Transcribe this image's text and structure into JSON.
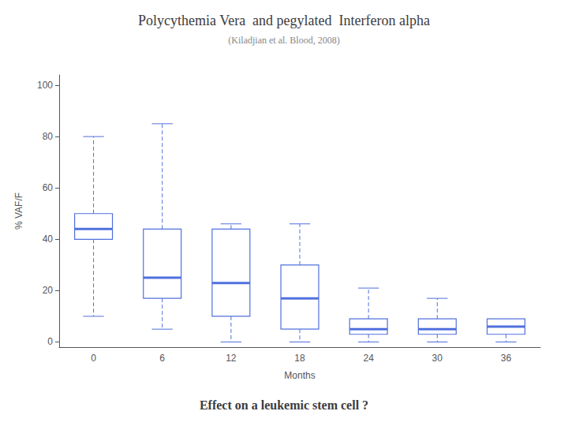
{
  "chart_data": {
    "type": "box",
    "title": "Polycythemia Vera  and pegylated  Interferon alpha",
    "subtitle": "(Kiladjian et al. Blood, 2008)",
    "xlabel": "Months",
    "ylabel": "% VAF/F",
    "annotation": "Effect on a leukemic stem cell ?",
    "categories": [
      "0",
      "6",
      "12",
      "18",
      "24",
      "30",
      "36"
    ],
    "values": [
      {
        "whisker_low": 10,
        "q1": 40,
        "median": 44,
        "q3": 50,
        "whisker_high": 80
      },
      {
        "whisker_low": 5,
        "q1": 17,
        "median": 25,
        "q3": 44,
        "whisker_high": 85
      },
      {
        "whisker_low": 0,
        "q1": 10,
        "median": 23,
        "q3": 44,
        "whisker_high": 46
      },
      {
        "whisker_low": 0,
        "q1": 5,
        "median": 17,
        "q3": 30,
        "whisker_high": 46
      },
      {
        "whisker_low": 0,
        "q1": 3,
        "median": 5,
        "q3": 9,
        "whisker_high": 21
      },
      {
        "whisker_low": 0,
        "q1": 3,
        "median": 5,
        "q3": 9,
        "whisker_high": 17
      },
      {
        "whisker_low": 0,
        "q1": 3,
        "median": 6,
        "q3": 9,
        "whisker_high": null
      }
    ],
    "ylim": [
      -2,
      104
    ],
    "yticks": [
      0,
      20,
      40,
      60,
      80,
      100
    ],
    "grid": false,
    "line_style": "dashed"
  }
}
